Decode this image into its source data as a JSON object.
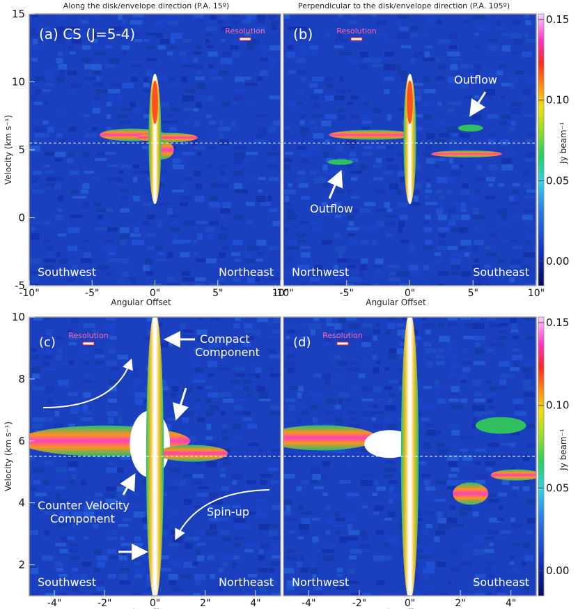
{
  "figure": {
    "header_left": "Along the disk/envelope direction (P.A. 15º)",
    "header_right": "Perpendicular to the disk/envelope direction (P.A. 105º)",
    "xlabel": "Angular Offset",
    "ylabel": "Velocity (km s⁻¹)",
    "colorbar_label": "Jy beam⁻¹",
    "resolution_label": "Resolution",
    "colorbar_ticks": [
      "0.15",
      "0.10",
      "0.05",
      "0.00"
    ],
    "colors": {
      "background": "#1a3fbf",
      "frame": "#9a9a9a",
      "text_light": "#ffffff",
      "resolution": "#ff69b4",
      "dashed": "#ffffff"
    }
  },
  "chart_data": [
    {
      "type": "heatmap",
      "panel": "(a)",
      "title": "(a) CS (J=5-4)",
      "xlim": [
        -10,
        10
      ],
      "ylim": [
        -5,
        15
      ],
      "xticks": [
        "-10\"",
        "-5\"",
        "0\"",
        "5\"",
        "10\""
      ],
      "yticks": [
        "-5",
        "0",
        "5",
        "10",
        "15"
      ],
      "show_xlabel": true,
      "show_ylabel": true,
      "systemic_velocity": 5.5,
      "corner_left": "Southwest",
      "corner_right": "Northeast",
      "annotations": []
    },
    {
      "type": "heatmap",
      "panel": "(b)",
      "title": "(b)",
      "xlim": [
        -10,
        10
      ],
      "ylim": [
        -5,
        15
      ],
      "xticks": [
        "-10\"",
        "-5\"",
        "0\"",
        "5\"",
        "10\""
      ],
      "yticks": [],
      "show_xlabel": true,
      "show_ylabel": false,
      "systemic_velocity": 5.5,
      "corner_left": "Northwest",
      "corner_right": "Southeast",
      "annotations": [
        "Outflow",
        "Outflow"
      ]
    },
    {
      "type": "heatmap",
      "panel": "(c)",
      "title": "(c)",
      "xlim": [
        -5,
        5
      ],
      "ylim": [
        1,
        10
      ],
      "xticks": [
        "-4\"",
        "-2\"",
        "0\"",
        "2\"",
        "4\""
      ],
      "yticks": [
        "2",
        "4",
        "6",
        "8",
        "10"
      ],
      "show_xlabel": true,
      "show_ylabel": true,
      "systemic_velocity": 5.5,
      "corner_left": "Southwest",
      "corner_right": "Northeast",
      "annotations": [
        "Compact",
        "Component",
        "Counter Velocity",
        "Component",
        "Spin-up"
      ]
    },
    {
      "type": "heatmap",
      "panel": "(d)",
      "title": "(d)",
      "xlim": [
        -5,
        5
      ],
      "ylim": [
        1,
        10
      ],
      "xticks": [
        "-4\"",
        "-2\"",
        "0\"",
        "2\"",
        "4\""
      ],
      "yticks": [],
      "show_xlabel": true,
      "show_ylabel": false,
      "systemic_velocity": 5.5,
      "corner_left": "Northwest",
      "corner_right": "Southeast",
      "annotations": []
    }
  ]
}
